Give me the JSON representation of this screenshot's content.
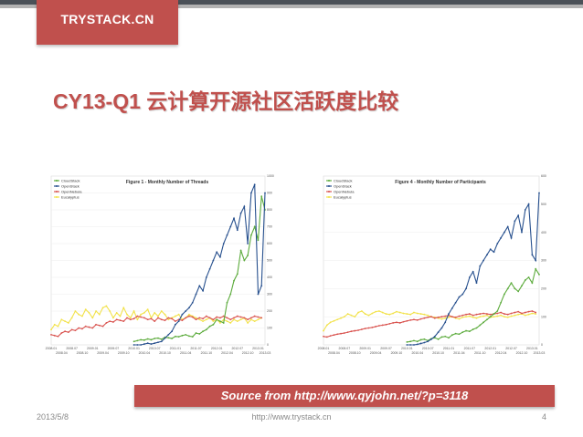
{
  "header": {
    "brand": "TRYSTACK.CN"
  },
  "slide": {
    "title": "CY13-Q1 云计算开源社区活跃度比较"
  },
  "source": {
    "text": "Source from   http://www.qyjohn.net/?p=3118"
  },
  "footer": {
    "date": "2013/5/8",
    "url": "http://www.trystack.cn",
    "page": "4"
  },
  "colors": {
    "accent": "#c0504d",
    "cloudstack": "#5cab3c",
    "openstack": "#27508e",
    "opennebula": "#d9534f",
    "eucalyptus": "#f2e24a"
  },
  "chart_data": [
    {
      "type": "line",
      "title": "Figure 1 - Monthly Number of Threads",
      "ylim": [
        0,
        1000
      ],
      "yticks": [
        "1000",
        "900",
        "800",
        "700",
        "600",
        "500",
        "400",
        "300",
        "200",
        "100",
        "0"
      ],
      "xticks_top": [
        "2008.01",
        "2008.07",
        "2009.01",
        "2009.07",
        "2010.01",
        "2010.07",
        "2011.01",
        "2011.07",
        "2012.01",
        "2012.07",
        "2013.01"
      ],
      "xticks_bottom": [
        "2008.04",
        "2008.10",
        "2009.04",
        "2009.10",
        "2010.04",
        "2010.10",
        "2011.04",
        "2011.10",
        "2012.04",
        "2012.10",
        "2013.03"
      ],
      "series": [
        {
          "name": "CloudStack",
          "color": "#5cab3c",
          "start": 24,
          "values": [
            20,
            25,
            30,
            28,
            35,
            30,
            38,
            40,
            33,
            45,
            42,
            38,
            50,
            48,
            55,
            60,
            52,
            48,
            70,
            65,
            80,
            90,
            110,
            120,
            150,
            140,
            130,
            250,
            300,
            380,
            420,
            560,
            500,
            530,
            650,
            700,
            620,
            880,
            800
          ]
        },
        {
          "name": "OpenStack",
          "color": "#27508e",
          "start": 24,
          "values": [
            0,
            0,
            0,
            5,
            10,
            5,
            10,
            15,
            20,
            40,
            60,
            80,
            120,
            140,
            180,
            200,
            220,
            250,
            300,
            350,
            320,
            400,
            450,
            500,
            550,
            520,
            600,
            650,
            700,
            750,
            680,
            780,
            820,
            600,
            900,
            950,
            300,
            350,
            900
          ]
        },
        {
          "name": "OpenNebula",
          "color": "#d9534f",
          "start": 0,
          "values": [
            60,
            55,
            50,
            70,
            80,
            75,
            90,
            85,
            100,
            95,
            110,
            105,
            100,
            120,
            115,
            110,
            130,
            140,
            135,
            150,
            145,
            140,
            160,
            150,
            155,
            170,
            165,
            160,
            150,
            155,
            140,
            160,
            150,
            145,
            160,
            155,
            140,
            150,
            145,
            160,
            170,
            165,
            150,
            160,
            155,
            170,
            160,
            150,
            165,
            160,
            170,
            160,
            150,
            160,
            170,
            165,
            160,
            150,
            160,
            170,
            165,
            160
          ]
        },
        {
          "name": "Eucalyptus",
          "color": "#f2e24a",
          "start": 0,
          "values": [
            90,
            120,
            110,
            150,
            140,
            130,
            160,
            200,
            180,
            170,
            210,
            190,
            160,
            200,
            180,
            220,
            230,
            200,
            160,
            190,
            170,
            220,
            180,
            160,
            200,
            150,
            180,
            190,
            210,
            160,
            190,
            170,
            200,
            180,
            150,
            160,
            170,
            180,
            150,
            160,
            180,
            170,
            160,
            150,
            140,
            150,
            160,
            140,
            150,
            130,
            150,
            140,
            130,
            150,
            140,
            150,
            160,
            130,
            150,
            140,
            150,
            160
          ]
        }
      ]
    },
    {
      "type": "line",
      "title": "Figure 4 - Monthly Number of Participants",
      "ylim": [
        0,
        600
      ],
      "yticks": [
        "600",
        "500",
        "400",
        "300",
        "200",
        "100",
        "0"
      ],
      "xticks_top": [
        "2008.01",
        "2008.07",
        "2009.01",
        "2009.07",
        "2010.01",
        "2010.07",
        "2011.01",
        "2011.07",
        "2012.01",
        "2012.07",
        "2013.01"
      ],
      "xticks_bottom": [
        "2008.04",
        "2008.10",
        "2009.04",
        "2009.10",
        "2010.04",
        "2010.10",
        "2011.04",
        "2011.10",
        "2012.04",
        "2012.10",
        "2013.03"
      ],
      "series": [
        {
          "name": "CloudStack",
          "color": "#5cab3c",
          "start": 24,
          "values": [
            10,
            12,
            15,
            12,
            18,
            20,
            15,
            22,
            25,
            20,
            28,
            30,
            25,
            35,
            40,
            38,
            45,
            50,
            48,
            55,
            60,
            70,
            80,
            90,
            100,
            110,
            120,
            150,
            180,
            200,
            220,
            200,
            190,
            210,
            230,
            240,
            220,
            270,
            250
          ]
        },
        {
          "name": "OpenStack",
          "color": "#27508e",
          "start": 24,
          "values": [
            0,
            0,
            0,
            2,
            5,
            8,
            12,
            20,
            30,
            45,
            60,
            80,
            110,
            130,
            150,
            170,
            180,
            200,
            240,
            260,
            220,
            280,
            300,
            320,
            340,
            330,
            360,
            380,
            400,
            420,
            380,
            440,
            460,
            400,
            480,
            500,
            320,
            300,
            540
          ]
        },
        {
          "name": "OpenNebula",
          "color": "#d9534f",
          "start": 0,
          "values": [
            30,
            28,
            32,
            35,
            38,
            40,
            42,
            45,
            48,
            50,
            52,
            55,
            58,
            60,
            62,
            65,
            68,
            70,
            72,
            75,
            78,
            80,
            78,
            82,
            85,
            88,
            90,
            88,
            92,
            95,
            98,
            100,
            95,
            98,
            100,
            102,
            105,
            100,
            98,
            102,
            105,
            108,
            110,
            105,
            108,
            110,
            112,
            110,
            108,
            110,
            112,
            115,
            110,
            108,
            112,
            115,
            118,
            112,
            115,
            118,
            120,
            115
          ]
        },
        {
          "name": "Eucalyptus",
          "color": "#f2e24a",
          "start": 0,
          "values": [
            50,
            70,
            80,
            85,
            90,
            95,
            100,
            110,
            105,
            100,
            115,
            120,
            110,
            105,
            112,
            118,
            120,
            115,
            110,
            108,
            112,
            118,
            115,
            112,
            110,
            108,
            115,
            112,
            110,
            108,
            105,
            100,
            98,
            95,
            92,
            95,
            98,
            100,
            95,
            92,
            98,
            100,
            102,
            98,
            95,
            100,
            102,
            105,
            98,
            100,
            102,
            105,
            100,
            98,
            102,
            105,
            108,
            110,
            105,
            108,
            112,
            110
          ]
        }
      ]
    }
  ]
}
